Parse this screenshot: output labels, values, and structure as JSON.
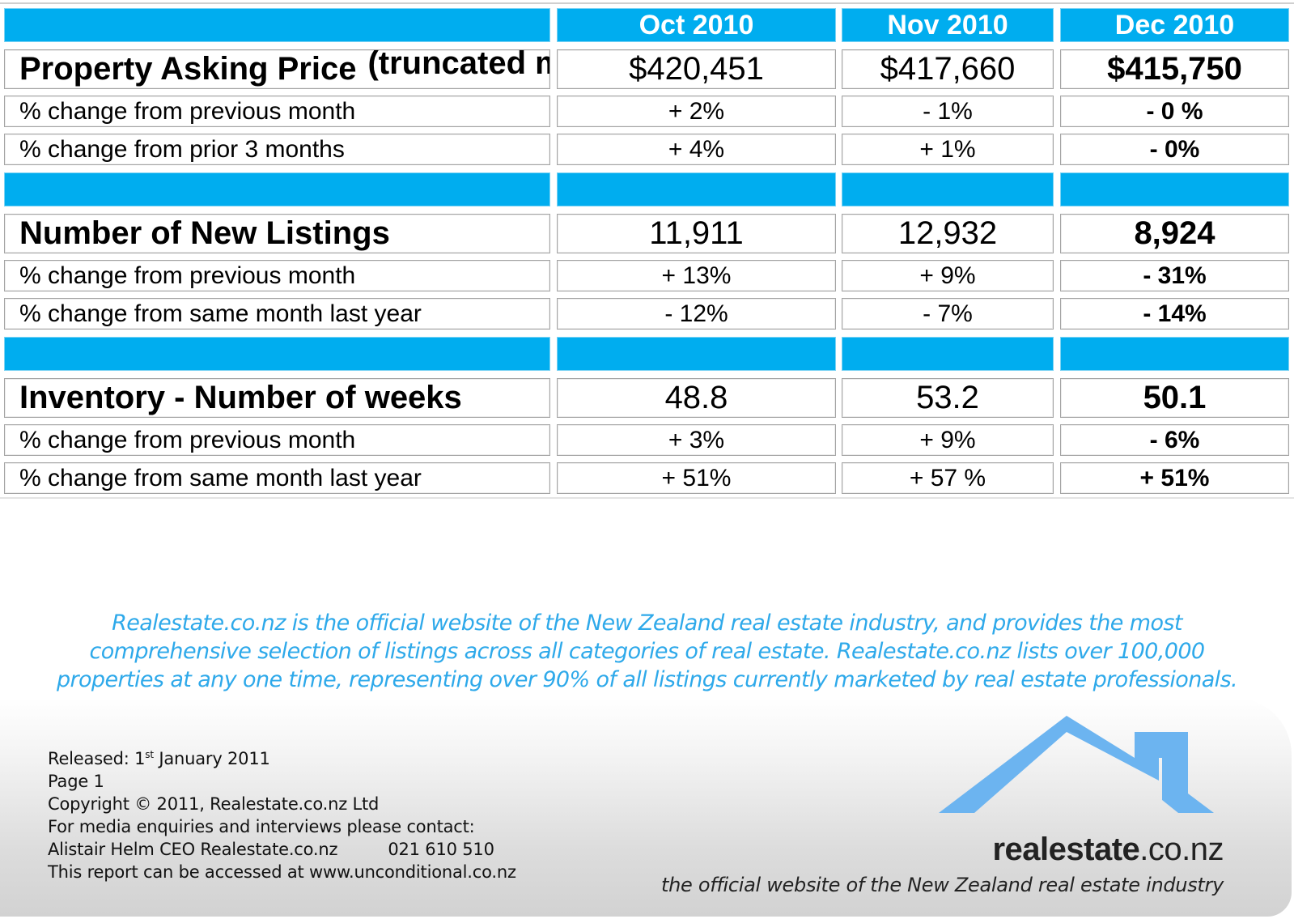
{
  "table": {
    "header": [
      "",
      "Oct 2010",
      "Nov 2010",
      "Dec 2010"
    ],
    "sections": [
      {
        "title": "Property Asking Price",
        "note": "(truncated mean)",
        "values": [
          "$420,451",
          "$417,660",
          "$415,750"
        ],
        "rows": [
          {
            "label": "% change from previous month",
            "values": [
              "+ 2%",
              "- 1%",
              "- 0 %"
            ]
          },
          {
            "label": "% change from prior 3 months",
            "values": [
              "+ 4%",
              "+ 1%",
              "- 0%"
            ]
          }
        ]
      },
      {
        "title": "Number of New Listings",
        "note": "",
        "values": [
          "11,911",
          "12,932",
          "8,924"
        ],
        "rows": [
          {
            "label": "% change from previous month",
            "values": [
              "+ 13%",
              "+ 9%",
              "- 31%"
            ]
          },
          {
            "label": "% change from same month last year",
            "values": [
              "- 12%",
              "- 7%",
              "- 14%"
            ]
          }
        ]
      },
      {
        "title": "Inventory - Number of weeks",
        "note": "",
        "values": [
          "48.8",
          "53.2",
          "50.1"
        ],
        "rows": [
          {
            "label": "% change from previous month",
            "values": [
              "+ 3%",
              "+ 9%",
              "- 6%"
            ]
          },
          {
            "label": "% change from same month last year",
            "values": [
              "+ 51%",
              "+ 57 %",
              "+ 51%"
            ]
          }
        ]
      }
    ]
  },
  "blurb": {
    "lines": [
      "Realestate.co.nz is the official website of the New Zealand real estate industry, and provides the most",
      "comprehensive selection of listings across all categories of real estate. Realestate.co.nz lists over 100,000",
      "properties at any one time, representing over 90% of all listings currently marketed by real estate professionals."
    ]
  },
  "footer": {
    "released_label": "Released: 1",
    "released_sup": "st",
    "released_date": " January 2011",
    "page": "Page 1",
    "copyright": "Copyright © 2011, Realestate.co.nz Ltd",
    "media": "For media enquiries and interviews please contact:",
    "contact_name": "Alistair Helm CEO Realestate.co.nz",
    "contact_phone": "021 610 510",
    "access": "This report can be accessed at www.unconditional.co.nz"
  },
  "logo": {
    "name_bold": "realestate",
    "name_rest": ".co.nz",
    "tagline": "the official website of the New Zealand real estate industry",
    "color": "#6cb4f0"
  },
  "colors": {
    "header_blue": "#00adef",
    "blurb_blue": "#2ea9ea"
  }
}
